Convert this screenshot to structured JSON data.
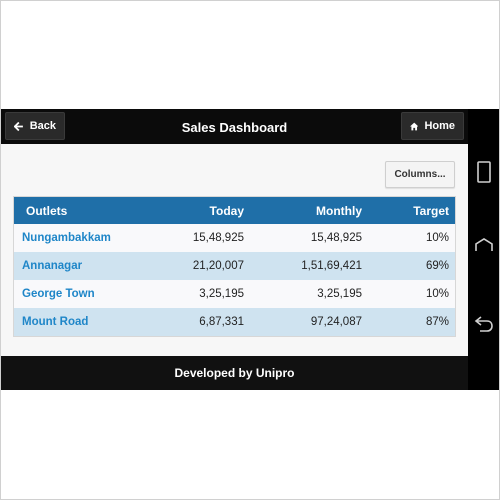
{
  "header": {
    "back_label": "Back",
    "title": "Sales Dashboard",
    "home_label": "Home"
  },
  "toolbar": {
    "columns_label": "Columns..."
  },
  "table": {
    "headers": [
      "Outlets",
      "Today",
      "Monthly",
      "Target"
    ],
    "rows": [
      [
        "Nungambakkam",
        "15,48,925",
        "15,48,925",
        "10%"
      ],
      [
        "Annanagar",
        "21,20,007",
        "1,51,69,421",
        "69%"
      ],
      [
        "George Town",
        "3,25,195",
        "3,25,195",
        "10%"
      ],
      [
        "Mount Road",
        "6,87,331",
        "97,24,087",
        "87%"
      ]
    ]
  },
  "footer": {
    "text": "Developed by Unipro"
  },
  "icons": {
    "back": "arrow-left-icon",
    "home": "home-icon",
    "recents": "recents-icon",
    "android_home": "android-home-icon",
    "android_back": "android-back-icon"
  },
  "colors": {
    "header_blue": "#1f6fa8",
    "link_blue": "#1f86c8",
    "row_alt": "#cfe3f0"
  }
}
